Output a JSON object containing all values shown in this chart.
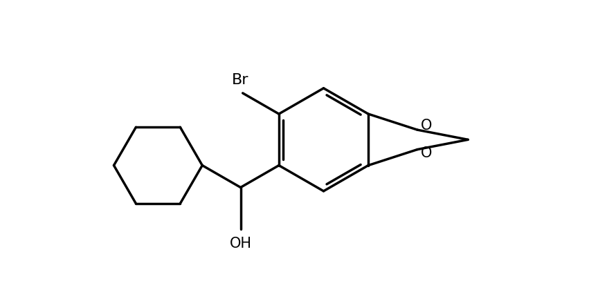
{
  "background_color": "#ffffff",
  "line_color": "#000000",
  "line_width": 2.5,
  "font_size_label": 15,
  "label_Br": "Br",
  "label_O1": "O",
  "label_O2": "O",
  "label_OH": "OH",
  "fig_width": 8.64,
  "fig_height": 4.26,
  "dpi": 100,
  "xlim": [
    -4.5,
    5.5
  ],
  "ylim": [
    -3.0,
    3.0
  ]
}
